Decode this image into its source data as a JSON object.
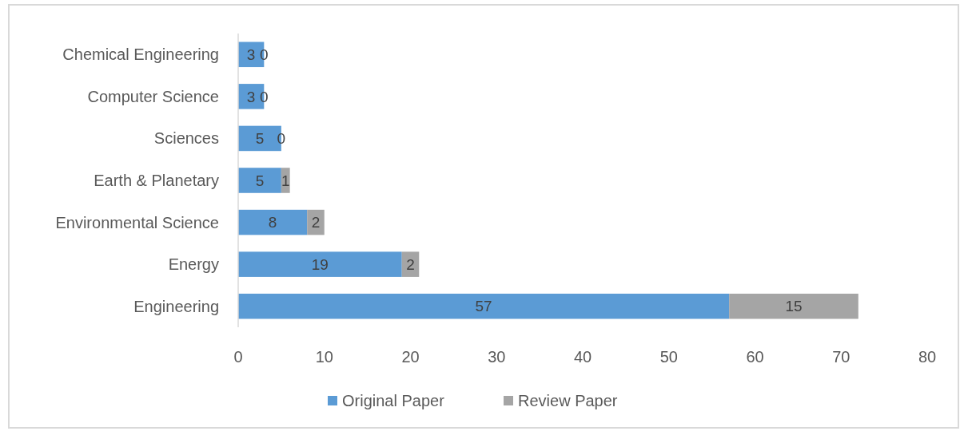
{
  "chart_data": {
    "type": "bar",
    "orientation": "horizontal",
    "stacked": true,
    "categories": [
      "Chemical Engineering",
      "Computer Science",
      "Sciences",
      "Earth & Planetary",
      "Environmental Science",
      "Energy",
      "Engineering"
    ],
    "series": [
      {
        "name": "Original Paper",
        "color": "#5b9bd5",
        "values": [
          3,
          3,
          5,
          5,
          8,
          19,
          57
        ]
      },
      {
        "name": "Review Paper",
        "color": "#a5a5a5",
        "values": [
          0,
          0,
          0,
          1,
          2,
          2,
          15
        ]
      }
    ],
    "xlim": [
      0,
      80
    ],
    "xticks": [
      0,
      10,
      20,
      30,
      40,
      50,
      60,
      70,
      80
    ],
    "data_labels": true,
    "legend": "bottom",
    "grid": false
  }
}
